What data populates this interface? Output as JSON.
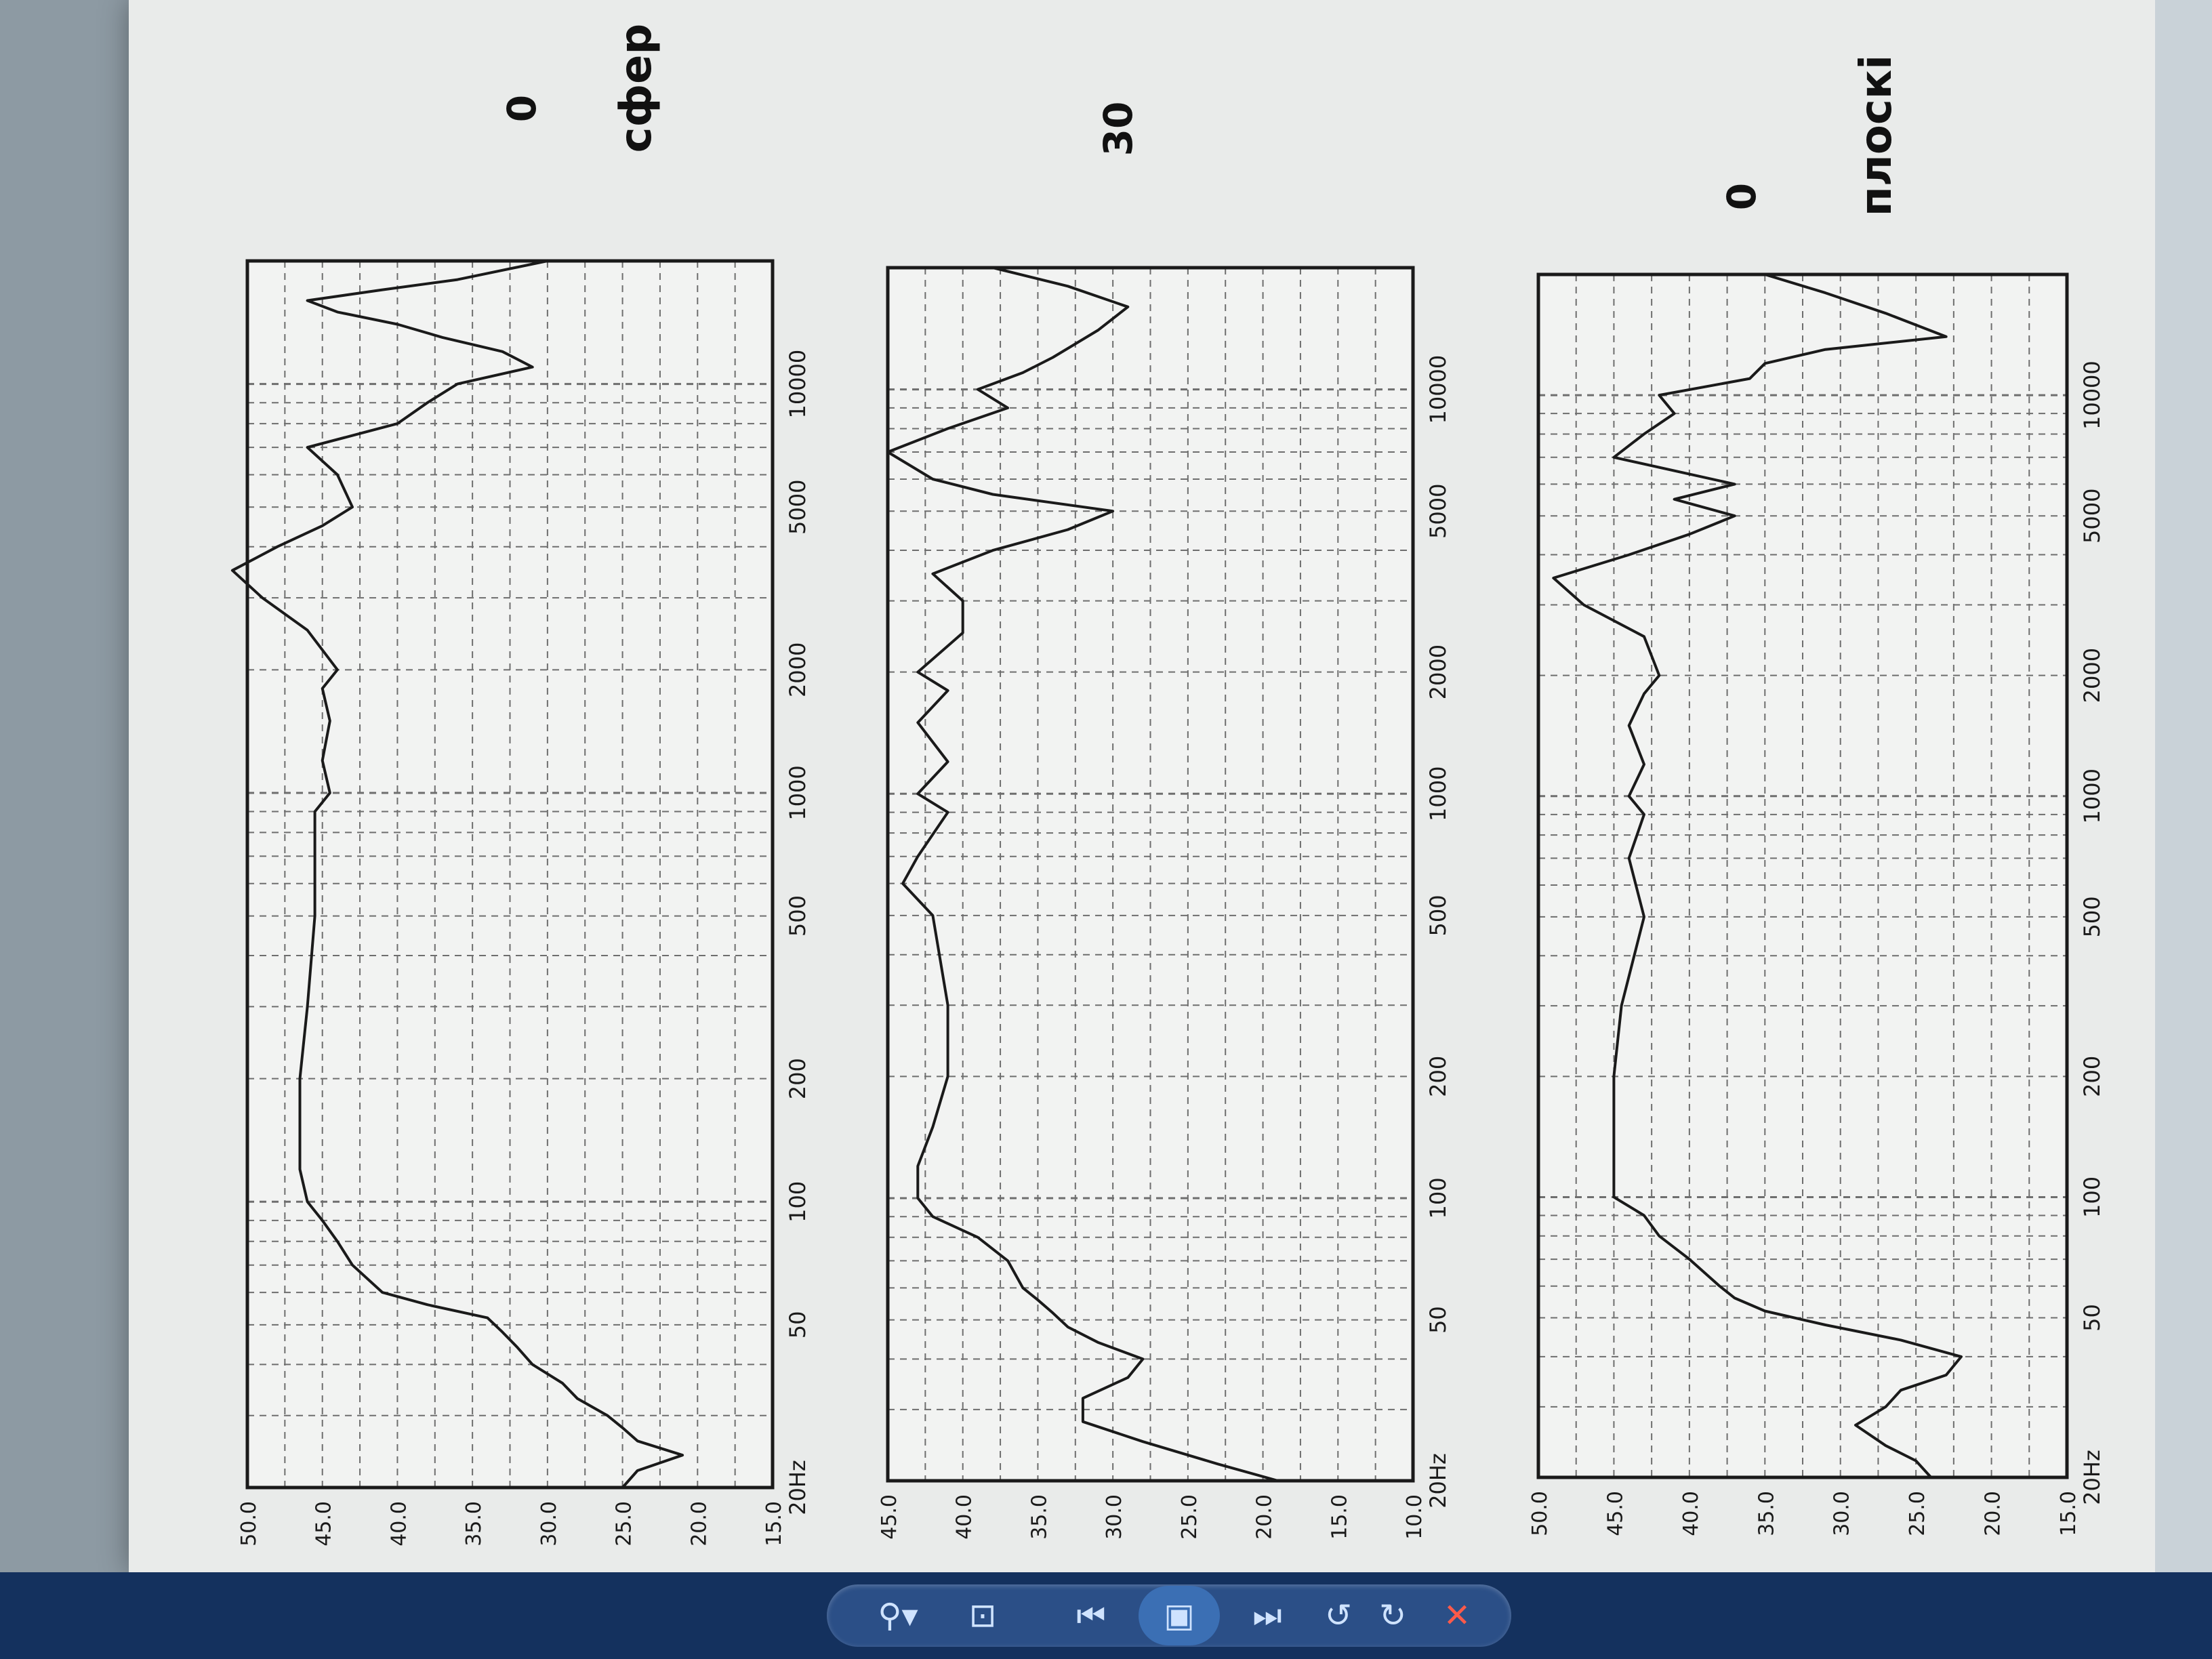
{
  "chart_data": [
    {
      "type": "line",
      "title": "0 сфер",
      "title_value": "0",
      "title_text": "сфер",
      "xscale": "log",
      "xlim": [
        20,
        20000
      ],
      "ylim": [
        15,
        50
      ],
      "x_ticks": [
        "20Hz",
        "50",
        "100",
        "200",
        "500",
        "1000",
        "2000",
        "5000",
        "10000"
      ],
      "y_ticks": [
        "50.0",
        "45.0",
        "40.0",
        "35.0",
        "30.0",
        "25.0",
        "20.0",
        "15.0"
      ],
      "grid": true,
      "x": [
        20,
        22,
        24,
        26,
        28,
        30,
        33,
        36,
        40,
        44,
        48,
        52,
        56,
        60,
        70,
        80,
        90,
        100,
        120,
        150,
        200,
        300,
        500,
        700,
        900,
        1000,
        1200,
        1500,
        1800,
        2000,
        2500,
        3000,
        3500,
        4000,
        4500,
        5000,
        6000,
        7000,
        8000,
        9000,
        10000,
        11000,
        12000,
        13000,
        14000,
        15000,
        16000,
        17000,
        18000,
        20000
      ],
      "values": [
        25,
        24,
        21,
        24,
        25,
        26,
        28,
        29,
        31,
        32,
        33,
        34,
        38,
        41,
        43,
        44,
        45,
        46,
        46.5,
        46.5,
        46.5,
        46,
        45.5,
        45.5,
        45.5,
        44.5,
        45,
        44.5,
        45,
        44,
        46,
        49,
        51,
        48,
        45,
        43,
        44,
        46,
        40,
        38,
        36,
        31,
        33,
        37,
        40,
        44,
        46,
        41,
        36,
        30
      ]
    },
    {
      "type": "line",
      "title": "30",
      "title_value": "30",
      "xscale": "log",
      "xlim": [
        20,
        20000
      ],
      "ylim": [
        10,
        45
      ],
      "x_ticks": [
        "20Hz",
        "50",
        "100",
        "200",
        "500",
        "1000",
        "2000",
        "5000",
        "10000"
      ],
      "y_ticks": [
        "45.0",
        "40.0",
        "35.0",
        "30.0",
        "25.0",
        "20.0",
        "15.0",
        "10.0"
      ],
      "grid": true,
      "x": [
        20,
        22,
        25,
        28,
        32,
        36,
        40,
        44,
        48,
        52,
        56,
        60,
        70,
        80,
        90,
        100,
        120,
        150,
        200,
        300,
        500,
        600,
        700,
        900,
        1000,
        1200,
        1500,
        1800,
        2000,
        2500,
        3000,
        3500,
        4000,
        4500,
        5000,
        5500,
        6000,
        7000,
        8000,
        9000,
        10000,
        11000,
        12000,
        14000,
        16000,
        18000,
        20000
      ],
      "values": [
        19,
        23,
        28,
        32,
        32,
        29,
        28,
        31,
        33,
        34,
        35,
        36,
        37,
        39,
        42,
        43,
        43,
        42,
        41,
        41,
        42,
        44,
        43,
        41,
        43,
        41,
        43,
        41,
        43,
        40,
        40,
        42,
        38,
        33,
        30,
        38,
        42,
        45,
        41,
        37,
        39,
        36,
        34,
        31,
        29,
        33,
        38
      ]
    },
    {
      "type": "line",
      "title": "0 плоскі",
      "title_value": "0",
      "title_text": "плоскі",
      "xscale": "log",
      "xlim": [
        20,
        20000
      ],
      "ylim": [
        15,
        50
      ],
      "x_ticks": [
        "20Hz",
        "50",
        "100",
        "200",
        "500",
        "1000",
        "2000",
        "5000",
        "10000"
      ],
      "y_ticks": [
        "50.0",
        "45.0",
        "40.0",
        "35.0",
        "30.0",
        "25.0",
        "20.0",
        "15.0"
      ],
      "grid": true,
      "x": [
        20,
        22,
        24,
        27,
        30,
        33,
        36,
        40,
        44,
        48,
        52,
        56,
        60,
        70,
        80,
        90,
        100,
        120,
        150,
        200,
        300,
        500,
        700,
        900,
        1000,
        1200,
        1500,
        1800,
        2000,
        2500,
        3000,
        3500,
        4000,
        4500,
        5000,
        5500,
        6000,
        7000,
        8000,
        9000,
        10000,
        11000,
        12000,
        13000,
        14000,
        16000,
        18000,
        20000
      ],
      "values": [
        24,
        25,
        27,
        29,
        27,
        26,
        23,
        22,
        26,
        31,
        35,
        37,
        38,
        40,
        42,
        43,
        45,
        45,
        45,
        45,
        44.5,
        43,
        44,
        43,
        44,
        43,
        44,
        43,
        42,
        43,
        47,
        49,
        44,
        40,
        37,
        41,
        37,
        45,
        43,
        41,
        42,
        36,
        35,
        31,
        23,
        27,
        31,
        35
      ]
    }
  ],
  "viewer_toolbar": {
    "zoom_label": "⚲▾",
    "fit_label": "⊡",
    "prev_label": "⏮",
    "slideshow_label": "▣",
    "next_label": "⏭",
    "rotate_ccw_label": "↺",
    "rotate_cw_label": "↻",
    "delete_label": "✕"
  },
  "colors": {
    "ink": "#1a1a1a",
    "grid": "#6e6e6e",
    "paper": "#e9ebea",
    "toolbar": "#2b4f87"
  }
}
